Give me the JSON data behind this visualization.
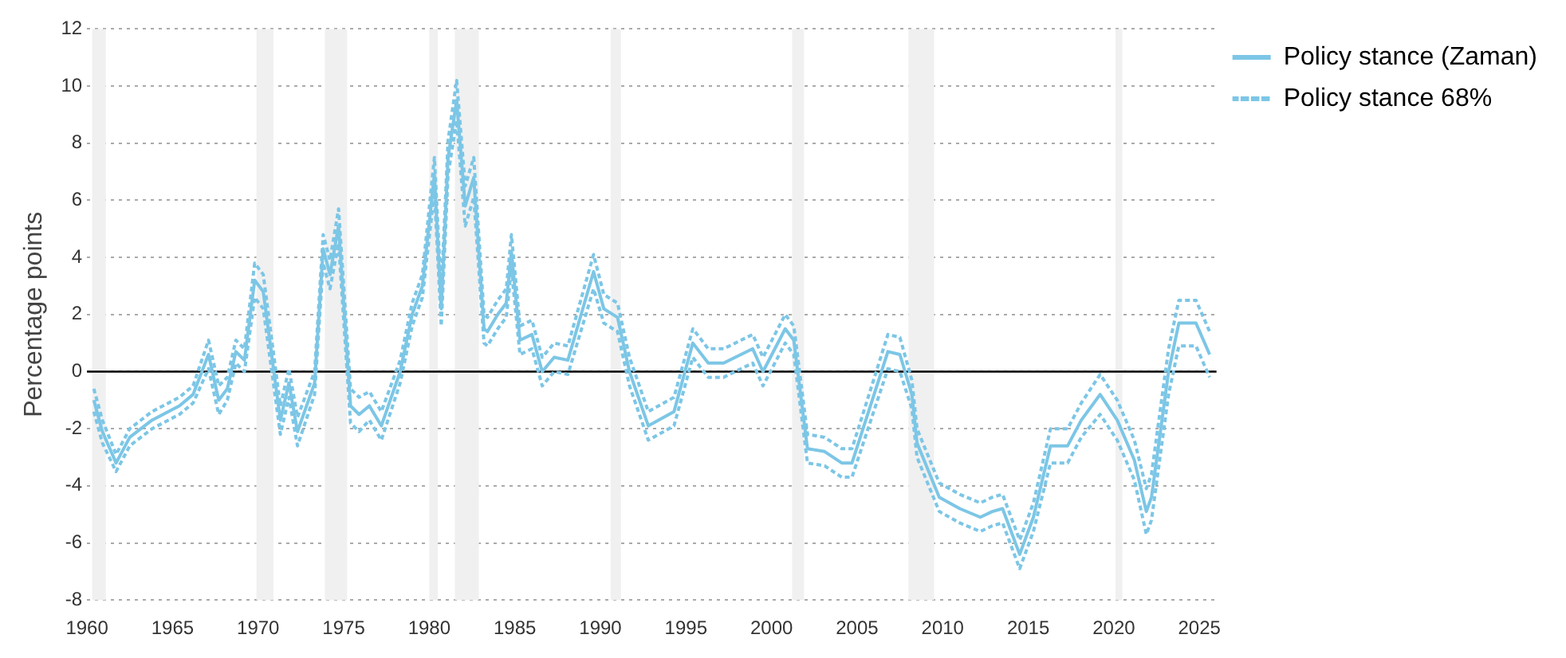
{
  "chart_data": {
    "type": "line",
    "ylabel": "Percentage points",
    "x": [
      1960.4,
      1960.9,
      1961.7,
      1962.5,
      1963.8,
      1965.4,
      1966.2,
      1967.1,
      1967.7,
      1968.2,
      1968.7,
      1969.2,
      1969.8,
      1970.3,
      1971.3,
      1971.8,
      1972.3,
      1973.3,
      1973.8,
      1974.2,
      1974.7,
      1975.4,
      1975.9,
      1976.5,
      1977.2,
      1978.3,
      1979.0,
      1979.6,
      1980.3,
      1980.7,
      1981.1,
      1981.6,
      1982.1,
      1982.6,
      1983.2,
      1983.4,
      1984.0,
      1984.5,
      1984.8,
      1985.3,
      1986.0,
      1986.6,
      1987.3,
      1988.1,
      1989.6,
      1990.2,
      1991.0,
      1991.7,
      1992.8,
      1994.3,
      1995.4,
      1996.3,
      1997.2,
      1998.9,
      1999.5,
      2000.8,
      2001.3,
      2002.1,
      2003.1,
      2004.1,
      2004.7,
      2006.8,
      2007.5,
      2008.2,
      2008.5,
      2009.8,
      2011.0,
      2012.2,
      2012.9,
      2013.5,
      2014.5,
      2015.3,
      2016.3,
      2017.3,
      2018.1,
      2019.2,
      2020.2,
      2021.2,
      2021.9,
      2022.2,
      2023.2,
      2023.8,
      2024.8,
      2025.6
    ],
    "series": [
      {
        "name": "Policy stance (Zaman)",
        "color": "#7cc6e6",
        "line_style": "solid",
        "values": [
          -1.0,
          -2.1,
          -3.2,
          -2.3,
          -1.7,
          -1.2,
          -0.8,
          0.6,
          -1.0,
          -0.6,
          0.7,
          0.4,
          3.2,
          2.8,
          -1.7,
          -0.4,
          -2.1,
          -0.4,
          4.3,
          3.4,
          5.1,
          -1.2,
          -1.5,
          -1.2,
          -1.9,
          0.0,
          2.0,
          3.0,
          6.9,
          2.2,
          7.5,
          9.5,
          5.8,
          6.8,
          1.5,
          1.4,
          2.0,
          2.4,
          4.2,
          1.1,
          1.3,
          0.0,
          0.5,
          0.4,
          3.5,
          2.2,
          1.9,
          0.0,
          -1.9,
          -1.4,
          1.0,
          0.3,
          0.3,
          0.8,
          0.0,
          1.5,
          1.1,
          -2.7,
          -2.8,
          -3.2,
          -3.2,
          0.7,
          0.6,
          -0.8,
          -2.5,
          -4.4,
          -4.8,
          -5.1,
          -4.9,
          -4.8,
          -6.4,
          -5.1,
          -2.6,
          -2.6,
          -1.7,
          -0.8,
          -1.7,
          -3.1,
          -4.9,
          -4.4,
          0.0,
          1.7,
          1.7,
          0.6
        ]
      },
      {
        "name": "Policy stance 68%",
        "color": "#7cc6e6",
        "line_style": "dashed",
        "values": [
          -0.6,
          -1.7,
          -2.9,
          -2.0,
          -1.4,
          -0.9,
          -0.5,
          1.1,
          -0.5,
          -0.2,
          1.1,
          0.8,
          3.8,
          3.4,
          -1.2,
          0.1,
          -1.6,
          0.0,
          4.8,
          3.9,
          5.7,
          -0.6,
          -0.9,
          -0.7,
          -1.4,
          0.4,
          2.4,
          3.4,
          7.5,
          2.8,
          8.1,
          10.2,
          6.5,
          7.5,
          2.0,
          1.9,
          2.5,
          2.9,
          4.8,
          1.6,
          1.8,
          0.5,
          1.0,
          0.9,
          4.1,
          2.7,
          2.4,
          0.5,
          -1.4,
          -0.9,
          1.5,
          0.8,
          0.8,
          1.3,
          0.5,
          2.0,
          1.6,
          -2.2,
          -2.3,
          -2.7,
          -2.7,
          1.3,
          1.2,
          -0.3,
          -2.0,
          -3.9,
          -4.3,
          -4.6,
          -4.4,
          -4.3,
          -5.9,
          -4.6,
          -2.0,
          -2.0,
          -1.1,
          -0.1,
          -1.0,
          -2.4,
          -4.1,
          -3.6,
          0.8,
          2.5,
          2.5,
          1.4
        ]
      },
      {
        "color": "#7cc6e6",
        "line_style": "dashed",
        "values": [
          -1.4,
          -2.5,
          -3.5,
          -2.6,
          -2.0,
          -1.5,
          -1.1,
          0.1,
          -1.5,
          -1.0,
          0.3,
          0.0,
          2.6,
          2.2,
          -2.2,
          -0.9,
          -2.6,
          -0.8,
          3.8,
          2.9,
          4.5,
          -1.8,
          -2.1,
          -1.7,
          -2.4,
          -0.4,
          1.6,
          2.6,
          6.3,
          1.6,
          6.9,
          8.8,
          5.1,
          6.1,
          1.0,
          0.9,
          1.5,
          1.9,
          3.6,
          0.6,
          0.8,
          -0.5,
          0.0,
          -0.1,
          2.9,
          1.7,
          1.4,
          -0.5,
          -2.4,
          -1.9,
          0.5,
          -0.2,
          -0.2,
          0.3,
          -0.5,
          1.0,
          0.6,
          -3.2,
          -3.3,
          -3.7,
          -3.7,
          0.1,
          0.0,
          -1.3,
          -3.0,
          -4.9,
          -5.3,
          -5.6,
          -5.4,
          -5.3,
          -6.9,
          -5.6,
          -3.2,
          -3.2,
          -2.3,
          -1.5,
          -2.4,
          -3.8,
          -5.7,
          -5.2,
          -0.8,
          0.9,
          0.9,
          -0.2
        ]
      }
    ],
    "xlim": [
      1960,
      2026
    ],
    "xticks": [
      1960,
      1965,
      1970,
      1975,
      1980,
      1985,
      1990,
      1995,
      2000,
      2005,
      2010,
      2015,
      2020,
      2025
    ],
    "ylim": [
      -8,
      12
    ],
    "yticks": [
      -8,
      -6,
      -4,
      -2,
      0,
      2,
      4,
      6,
      8,
      10,
      12
    ],
    "grid": "y",
    "legend": "top right",
    "marker": "none",
    "ref_lines": [
      {
        "axis": "y",
        "value": 0,
        "color": "#000000"
      }
    ],
    "bands": [
      {
        "axis": "x",
        "from": 1960.3,
        "to": 1961.1,
        "color": "#f0f0f0"
      },
      {
        "axis": "x",
        "from": 1969.9,
        "to": 1970.9,
        "color": "#f0f0f0"
      },
      {
        "axis": "x",
        "from": 1973.9,
        "to": 1975.2,
        "color": "#f0f0f0"
      },
      {
        "axis": "x",
        "from": 1980.0,
        "to": 1980.5,
        "color": "#f0f0f0"
      },
      {
        "axis": "x",
        "from": 1981.5,
        "to": 1982.9,
        "color": "#f0f0f0"
      },
      {
        "axis": "x",
        "from": 1990.6,
        "to": 1991.2,
        "color": "#f0f0f0"
      },
      {
        "axis": "x",
        "from": 2001.2,
        "to": 2001.9,
        "color": "#f0f0f0"
      },
      {
        "axis": "x",
        "from": 2008.0,
        "to": 2009.5,
        "color": "#f0f0f0"
      },
      {
        "axis": "x",
        "from": 2020.1,
        "to": 2020.5,
        "color": "#f0f0f0"
      }
    ]
  }
}
